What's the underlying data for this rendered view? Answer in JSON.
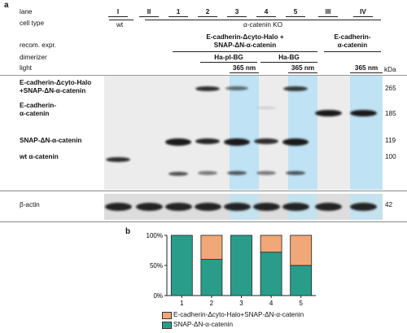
{
  "panel_a": {
    "letter": "a",
    "row_headers": {
      "lane": "lane",
      "cell_type": "cell type",
      "recom": "recom. expr.",
      "dimerizer": "dimerizer",
      "light": "light"
    },
    "lanes": [
      "I",
      "II",
      "1",
      "2",
      "3",
      "4",
      "5",
      "III",
      "IV"
    ],
    "cell_wt": "wt",
    "cell_ko": "α-catenin KO",
    "recom_group1_line1": "E-cadherin-Δcyto-Halo +",
    "recom_group1_line2": "SNAP-ΔN-α-catenin",
    "recom_group2_line1": "E-cadherin-",
    "recom_group2_line2": "α-catenin",
    "dimerizer_1": "Ha-pl-BG",
    "dimerizer_2": "Ha-BG",
    "light_1": "365 nm",
    "light_2": "365 nm",
    "light_3": "365 nm",
    "kda": "kDa",
    "band_labels": {
      "l1a": "E-cadherin-Δcyto-Halo",
      "l1b": "+SNAP-ΔN-α-catenin",
      "l2a": "E-cadherin-",
      "l2b": "α-catenin",
      "l3": "SNAP-ΔN-α-catenin",
      "l4": "wt α-catenin",
      "l5": "β-actin"
    },
    "mw": [
      "265",
      "185",
      "119",
      "100",
      "42"
    ]
  },
  "panel_b": {
    "letter": "b",
    "legend_1": "E-cadherin-Δcyto-Halo+SNAP-ΔN-α-catenin",
    "legend_2": "SNAP-ΔN-α-catenin",
    "colors": {
      "orange": "#f0a878",
      "teal": "#2a9d8a"
    }
  },
  "chart_data": {
    "type": "bar",
    "stacked": true,
    "categories": [
      "1",
      "2",
      "3",
      "4",
      "5"
    ],
    "series": [
      {
        "name": "SNAP-ΔN-α-catenin",
        "values": [
          100,
          60,
          100,
          72,
          50
        ]
      },
      {
        "name": "E-cadherin-Δcyto-Halo+SNAP-ΔN-α-catenin",
        "values": [
          0,
          40,
          0,
          28,
          50
        ]
      }
    ],
    "y_ticks": [
      "0%",
      "50%",
      "100%"
    ],
    "ylim": [
      0,
      100
    ],
    "legend": "bottom"
  }
}
